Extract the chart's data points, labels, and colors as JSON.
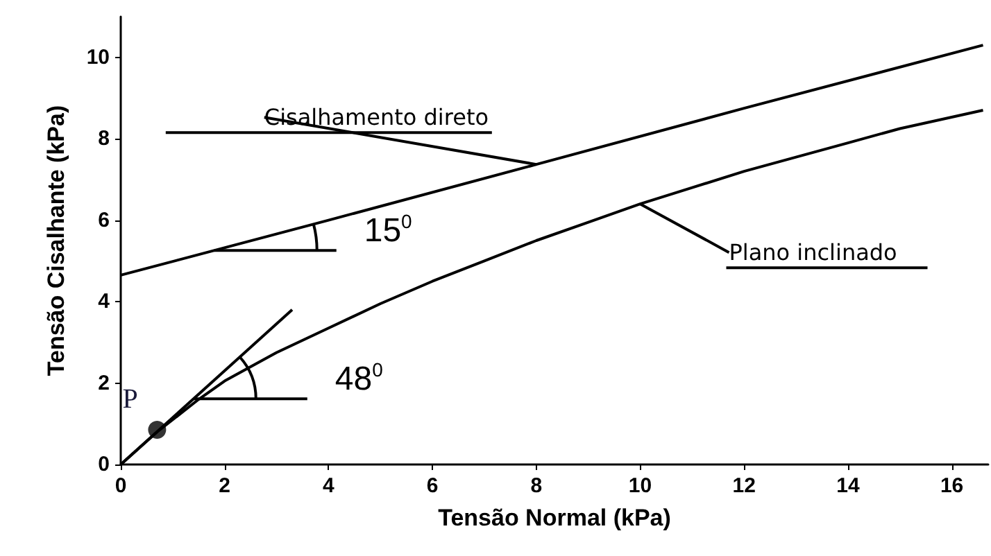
{
  "chart_data": {
    "type": "line",
    "xlabel": "Tensão Normal (kPa)",
    "ylabel": "Tensão Cisalhante (kPa)",
    "xlim": [
      0,
      16.7
    ],
    "xticks": [
      0,
      2,
      4,
      6,
      8,
      10,
      12,
      14,
      16
    ],
    "ylim": [
      0,
      11
    ],
    "yticks": [
      0,
      2,
      4,
      6,
      8,
      10
    ],
    "grid": false,
    "legend": false,
    "marker": "none",
    "line_style": "solid",
    "series": [
      {
        "name": "Cisalhamento direto",
        "color": "#000000",
        "x": [
          0,
          4,
          8,
          12,
          16.6
        ],
        "values": [
          4.65,
          6.0,
          7.37,
          8.75,
          10.3
        ]
      },
      {
        "name": "Plano inclinado",
        "color": "#000000",
        "x": [
          0,
          0.7,
          1.5,
          2,
          3,
          4,
          5,
          6,
          7,
          8,
          9,
          10,
          11,
          12,
          13,
          14,
          15,
          16.6
        ],
        "values": [
          0,
          0.8,
          1.6,
          2.05,
          2.75,
          3.35,
          3.95,
          4.5,
          5.0,
          5.5,
          5.95,
          6.4,
          6.8,
          7.2,
          7.55,
          7.9,
          8.25,
          8.7
        ]
      },
      {
        "color": "#000000",
        "x": [
          0,
          3.3
        ],
        "values": [
          0,
          3.8
        ]
      },
      {
        "type": "scatter",
        "marker": "circle",
        "color": "#000000",
        "x": [
          0.7
        ],
        "values": [
          0.85
        ]
      }
    ],
    "annotations": [
      "15$^{0}$",
      "48$^{0}$",
      {
        "text": "P",
        "x": 0.7,
        "y": 0.85
      }
    ]
  }
}
